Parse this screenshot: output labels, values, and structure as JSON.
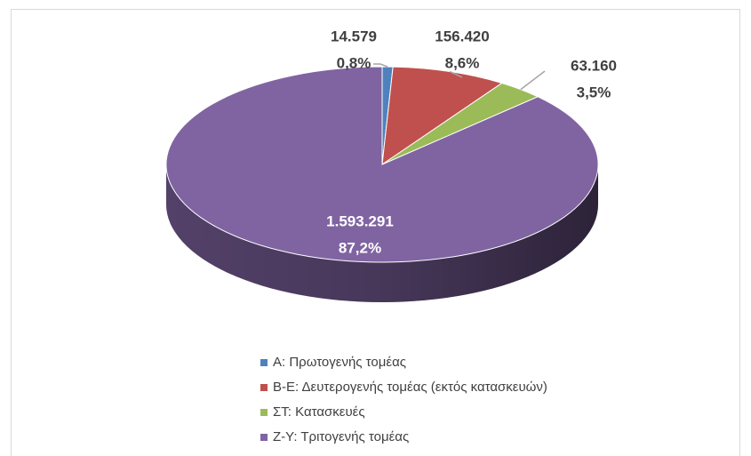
{
  "chart_data": {
    "type": "pie3d",
    "categories": [
      "Α: Πρωτογενής τομέας",
      "Β-Ε: Δευτερογενής τομέας (εκτός κατασκευών)",
      "ΣΤ: Κατασκευές",
      "Ζ-Υ: Τριτογενής τομέας"
    ],
    "values": [
      14579,
      156420,
      63160,
      1593291
    ],
    "value_labels": [
      "14.579",
      "156.420",
      "63.160",
      "1.593.291"
    ],
    "percentages": [
      0.8,
      8.6,
      3.5,
      87.2
    ],
    "percentage_labels": [
      "0,8%",
      "8,6%",
      "3,5%",
      "87,2%"
    ],
    "colors": [
      "#4f81bd",
      "#c0504d",
      "#9bbb59",
      "#8064a2"
    ],
    "legend": "bottom"
  }
}
